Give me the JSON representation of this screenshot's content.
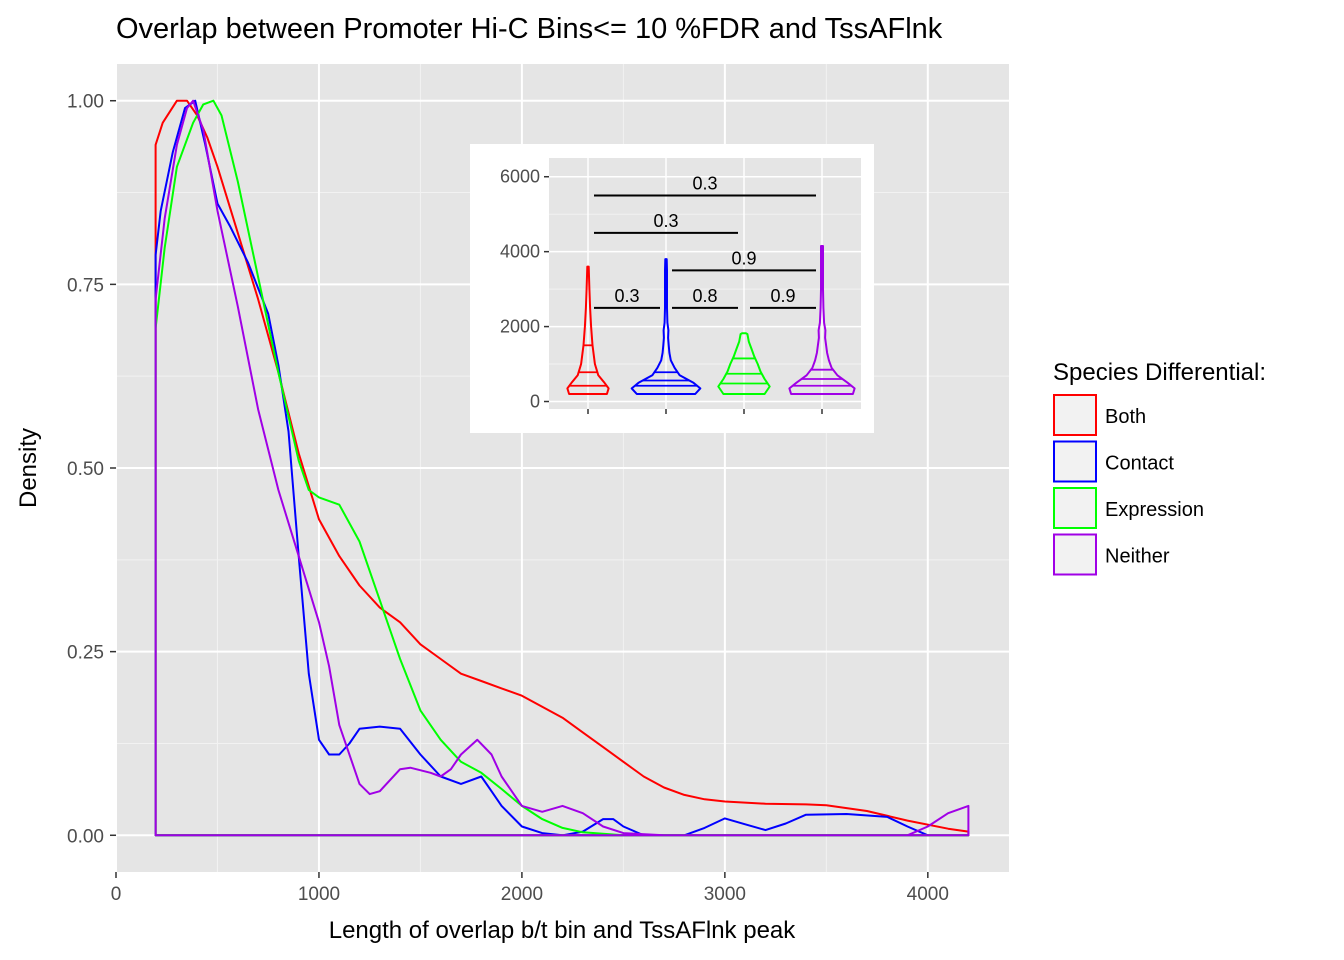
{
  "chart_data": [
    {
      "type": "area",
      "title": "Overlap between Promoter Hi-C Bins<= 10 %FDR and TssAFlnk",
      "xlabel": "Length of overlap b/t bin and TssAFlnk peak",
      "ylabel": "Density",
      "xlim": [
        0,
        4400
      ],
      "ylim": [
        -0.05,
        1.05
      ],
      "x_ticks": [
        0,
        1000,
        2000,
        3000,
        4000
      ],
      "x_tick_labels": [
        "0",
        "1000",
        "2000",
        "3000",
        "4000"
      ],
      "y_ticks": [
        0,
        0.25,
        0.5,
        0.75,
        1.0
      ],
      "y_tick_labels": [
        "0.00",
        "0.25",
        "0.50",
        "0.75",
        "1.00"
      ],
      "grid": true,
      "legend": {
        "title": "Species Differential:",
        "position": "right",
        "entries": [
          "Both",
          "Contact",
          "Expression",
          "Neither"
        ]
      },
      "series": [
        {
          "name": "Both",
          "color": "#ff0000",
          "points": [
            [
              195,
              0.94
            ],
            [
              230,
              0.97
            ],
            [
              300,
              1.0
            ],
            [
              350,
              1.0
            ],
            [
              400,
              0.98
            ],
            [
              450,
              0.95
            ],
            [
              500,
              0.91
            ],
            [
              600,
              0.82
            ],
            [
              700,
              0.73
            ],
            [
              800,
              0.63
            ],
            [
              900,
              0.52
            ],
            [
              1000,
              0.43
            ],
            [
              1100,
              0.38
            ],
            [
              1200,
              0.34
            ],
            [
              1300,
              0.31
            ],
            [
              1400,
              0.29
            ],
            [
              1500,
              0.26
            ],
            [
              1600,
              0.24
            ],
            [
              1700,
              0.22
            ],
            [
              1800,
              0.21
            ],
            [
              1900,
              0.2
            ],
            [
              2000,
              0.19
            ],
            [
              2100,
              0.175
            ],
            [
              2200,
              0.16
            ],
            [
              2300,
              0.14
            ],
            [
              2400,
              0.12
            ],
            [
              2500,
              0.1
            ],
            [
              2600,
              0.08
            ],
            [
              2700,
              0.065
            ],
            [
              2800,
              0.055
            ],
            [
              2900,
              0.049
            ],
            [
              3000,
              0.046
            ],
            [
              3200,
              0.043
            ],
            [
              3400,
              0.042
            ],
            [
              3500,
              0.041
            ],
            [
              3700,
              0.033
            ],
            [
              3900,
              0.02
            ],
            [
              4100,
              0.009
            ],
            [
              4200,
              0.005
            ]
          ]
        },
        {
          "name": "Contact",
          "color": "#0000ff",
          "points": [
            [
              195,
              0.79
            ],
            [
              220,
              0.85
            ],
            [
              280,
              0.93
            ],
            [
              340,
              0.99
            ],
            [
              390,
              1.0
            ],
            [
              440,
              0.94
            ],
            [
              500,
              0.86
            ],
            [
              560,
              0.83
            ],
            [
              650,
              0.78
            ],
            [
              750,
              0.71
            ],
            [
              800,
              0.64
            ],
            [
              850,
              0.55
            ],
            [
              900,
              0.38
            ],
            [
              950,
              0.22
            ],
            [
              1000,
              0.13
            ],
            [
              1050,
              0.11
            ],
            [
              1100,
              0.11
            ],
            [
              1150,
              0.125
            ],
            [
              1200,
              0.145
            ],
            [
              1300,
              0.148
            ],
            [
              1400,
              0.145
            ],
            [
              1500,
              0.11
            ],
            [
              1600,
              0.08
            ],
            [
              1700,
              0.07
            ],
            [
              1800,
              0.08
            ],
            [
              1850,
              0.06
            ],
            [
              1900,
              0.04
            ],
            [
              2000,
              0.012
            ],
            [
              2100,
              0.003
            ],
            [
              2200,
              0.0
            ],
            [
              2300,
              0.005
            ],
            [
              2400,
              0.022
            ],
            [
              2450,
              0.022
            ],
            [
              2500,
              0.012
            ],
            [
              2600,
              0.0
            ],
            [
              2800,
              0.0
            ],
            [
              2900,
              0.01
            ],
            [
              3000,
              0.023
            ],
            [
              3100,
              0.015
            ],
            [
              3200,
              0.007
            ],
            [
              3300,
              0.016
            ],
            [
              3400,
              0.028
            ],
            [
              3600,
              0.029
            ],
            [
              3800,
              0.025
            ],
            [
              3900,
              0.012
            ],
            [
              4000,
              0.0
            ],
            [
              4100,
              0.0
            ],
            [
              4200,
              0.0
            ]
          ]
        },
        {
          "name": "Expression",
          "color": "#00ff00",
          "points": [
            [
              195,
              0.69
            ],
            [
              240,
              0.8
            ],
            [
              300,
              0.91
            ],
            [
              380,
              0.97
            ],
            [
              430,
              0.995
            ],
            [
              480,
              1.0
            ],
            [
              520,
              0.98
            ],
            [
              600,
              0.89
            ],
            [
              700,
              0.76
            ],
            [
              800,
              0.63
            ],
            [
              900,
              0.51
            ],
            [
              950,
              0.47
            ],
            [
              1000,
              0.46
            ],
            [
              1100,
              0.45
            ],
            [
              1200,
              0.4
            ],
            [
              1300,
              0.32
            ],
            [
              1400,
              0.24
            ],
            [
              1500,
              0.17
            ],
            [
              1600,
              0.13
            ],
            [
              1700,
              0.1
            ],
            [
              1800,
              0.085
            ],
            [
              1900,
              0.063
            ],
            [
              2000,
              0.04
            ],
            [
              2100,
              0.022
            ],
            [
              2200,
              0.01
            ],
            [
              2300,
              0.004
            ],
            [
              2500,
              0.0
            ],
            [
              4200,
              0.0
            ]
          ]
        },
        {
          "name": "Neither",
          "color": "#a000e6",
          "points": [
            [
              195,
              0.73
            ],
            [
              240,
              0.84
            ],
            [
              300,
              0.94
            ],
            [
              350,
              0.99
            ],
            [
              380,
              1.0
            ],
            [
              430,
              0.96
            ],
            [
              500,
              0.85
            ],
            [
              600,
              0.72
            ],
            [
              700,
              0.58
            ],
            [
              800,
              0.47
            ],
            [
              900,
              0.38
            ],
            [
              1000,
              0.29
            ],
            [
              1050,
              0.23
            ],
            [
              1100,
              0.15
            ],
            [
              1200,
              0.07
            ],
            [
              1250,
              0.056
            ],
            [
              1300,
              0.06
            ],
            [
              1400,
              0.09
            ],
            [
              1450,
              0.092
            ],
            [
              1550,
              0.085
            ],
            [
              1600,
              0.08
            ],
            [
              1650,
              0.09
            ],
            [
              1700,
              0.11
            ],
            [
              1780,
              0.13
            ],
            [
              1850,
              0.11
            ],
            [
              1900,
              0.08
            ],
            [
              2000,
              0.04
            ],
            [
              2100,
              0.032
            ],
            [
              2200,
              0.04
            ],
            [
              2300,
              0.03
            ],
            [
              2400,
              0.012
            ],
            [
              2500,
              0.003
            ],
            [
              2700,
              0.0
            ],
            [
              3900,
              0.0
            ],
            [
              4000,
              0.012
            ],
            [
              4100,
              0.03
            ],
            [
              4200,
              0.04
            ]
          ]
        }
      ]
    },
    {
      "type": "violin",
      "inset": true,
      "ylim": [
        -200,
        6500
      ],
      "y_ticks": [
        0,
        2000,
        4000,
        6000
      ],
      "y_tick_labels": [
        "0",
        "2000",
        "4000",
        "6000"
      ],
      "x_ticks": [
        "Both",
        "Contact",
        "Expression",
        "Neither"
      ],
      "x_tick_labels": [
        "",
        "",
        "",
        ""
      ],
      "grid": true,
      "groups": [
        {
          "name": "Both",
          "color": "#ff0000",
          "min": 200,
          "max": 3600,
          "quantiles": [
            420,
            780,
            1500
          ],
          "profile": [
            [
              200,
              0.55
            ],
            [
              350,
              0.6
            ],
            [
              500,
              0.48
            ],
            [
              700,
              0.3
            ],
            [
              1000,
              0.2
            ],
            [
              1500,
              0.13
            ],
            [
              2000,
              0.09
            ],
            [
              2500,
              0.06
            ],
            [
              3000,
              0.04
            ],
            [
              3600,
              0.02
            ]
          ]
        },
        {
          "name": "Contact",
          "color": "#0000ff",
          "min": 200,
          "max": 3800,
          "quantiles": [
            420,
            560,
            780
          ],
          "profile": [
            [
              200,
              0.85
            ],
            [
              350,
              1.0
            ],
            [
              500,
              0.8
            ],
            [
              700,
              0.4
            ],
            [
              900,
              0.25
            ],
            [
              1100,
              0.14
            ],
            [
              1300,
              0.1
            ],
            [
              1500,
              0.08
            ],
            [
              1700,
              0.06
            ],
            [
              1900,
              0.07
            ],
            [
              2100,
              0.04
            ],
            [
              2500,
              0.03
            ],
            [
              3000,
              0.03
            ],
            [
              3500,
              0.03
            ],
            [
              3800,
              0.02
            ]
          ]
        },
        {
          "name": "Expression",
          "color": "#00ff00",
          "min": 200,
          "max": 1820,
          "quantiles": [
            480,
            740,
            1150
          ],
          "profile": [
            [
              200,
              0.6
            ],
            [
              400,
              0.75
            ],
            [
              600,
              0.6
            ],
            [
              800,
              0.48
            ],
            [
              1000,
              0.4
            ],
            [
              1200,
              0.3
            ],
            [
              1400,
              0.22
            ],
            [
              1600,
              0.14
            ],
            [
              1800,
              0.1
            ],
            [
              1820,
              0.06
            ]
          ]
        },
        {
          "name": "Neither",
          "color": "#a000e6",
          "min": 200,
          "max": 4150,
          "quantiles": [
            420,
            600,
            850
          ],
          "profile": [
            [
              200,
              0.9
            ],
            [
              350,
              0.95
            ],
            [
              500,
              0.75
            ],
            [
              700,
              0.45
            ],
            [
              900,
              0.28
            ],
            [
              1100,
              0.2
            ],
            [
              1300,
              0.15
            ],
            [
              1500,
              0.12
            ],
            [
              1700,
              0.09
            ],
            [
              1900,
              0.1
            ],
            [
              2100,
              0.06
            ],
            [
              2500,
              0.04
            ],
            [
              3000,
              0.03
            ],
            [
              3500,
              0.03
            ],
            [
              4150,
              0.03
            ]
          ]
        }
      ],
      "comparisons": [
        {
          "from": "Both",
          "to": "Neither",
          "label": "0.3",
          "y": 5500
        },
        {
          "from": "Both",
          "to": "Expression",
          "label": "0.3",
          "y": 4500
        },
        {
          "from": "Contact",
          "to": "Neither",
          "label": "0.9",
          "y": 3500
        },
        {
          "from": "Both",
          "to": "Contact",
          "label": "0.3",
          "y": 2500
        },
        {
          "from": "Contact",
          "to": "Expression",
          "label": "0.8",
          "y": 2500
        },
        {
          "from": "Expression",
          "to": "Neither",
          "label": "0.9",
          "y": 2500
        }
      ]
    }
  ]
}
